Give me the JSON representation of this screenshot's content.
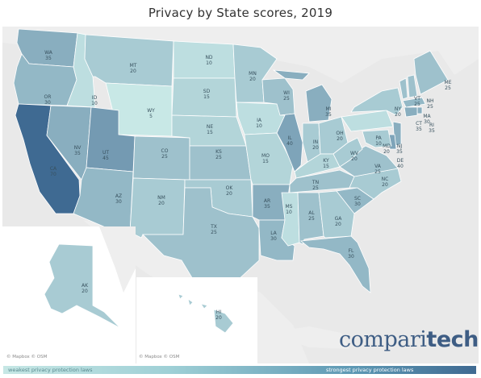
{
  "title": "Privacy by State scores, 2019",
  "legend": {
    "weak_label": "weakest privacy protection laws",
    "strong_label": "strongest privacy protection laws"
  },
  "credits": {
    "main": "© Mapbox  © OSM",
    "hawaii": "© Mapbox  © OSM"
  },
  "logo": {
    "part1": "compari",
    "part2": "tech"
  },
  "colors": {
    "background": "#e9e9e9",
    "low": "#c8e8e6",
    "high": "#3f6a92"
  },
  "states": [
    {
      "abbr": "WA",
      "score": "35"
    },
    {
      "abbr": "OR",
      "score": "30"
    },
    {
      "abbr": "CA",
      "score": "70"
    },
    {
      "abbr": "NV",
      "score": "35"
    },
    {
      "abbr": "ID",
      "score": "10"
    },
    {
      "abbr": "MT",
      "score": "20"
    },
    {
      "abbr": "WY",
      "score": "5"
    },
    {
      "abbr": "UT",
      "score": "45"
    },
    {
      "abbr": "AZ",
      "score": "30"
    },
    {
      "abbr": "CO",
      "score": "25"
    },
    {
      "abbr": "NM",
      "score": "20"
    },
    {
      "abbr": "ND",
      "score": "10"
    },
    {
      "abbr": "SD",
      "score": "15"
    },
    {
      "abbr": "NE",
      "score": "15"
    },
    {
      "abbr": "KS",
      "score": "25"
    },
    {
      "abbr": "OK",
      "score": "20"
    },
    {
      "abbr": "TX",
      "score": "25"
    },
    {
      "abbr": "MN",
      "score": "20"
    },
    {
      "abbr": "IA",
      "score": "10"
    },
    {
      "abbr": "MO",
      "score": "15"
    },
    {
      "abbr": "AR",
      "score": "35"
    },
    {
      "abbr": "LA",
      "score": "30"
    },
    {
      "abbr": "WI",
      "score": "25"
    },
    {
      "abbr": "IL",
      "score": "40"
    },
    {
      "abbr": "MI",
      "score": "35"
    },
    {
      "abbr": "IN",
      "score": "20"
    },
    {
      "abbr": "OH",
      "score": "20"
    },
    {
      "abbr": "KY",
      "score": "15"
    },
    {
      "abbr": "TN",
      "score": "25"
    },
    {
      "abbr": "MS",
      "score": "10"
    },
    {
      "abbr": "AL",
      "score": "25"
    },
    {
      "abbr": "GA",
      "score": "20"
    },
    {
      "abbr": "FL",
      "score": "30"
    },
    {
      "abbr": "SC",
      "score": "30"
    },
    {
      "abbr": "NC",
      "score": "20"
    },
    {
      "abbr": "VA",
      "score": "25"
    },
    {
      "abbr": "WV",
      "score": "20"
    },
    {
      "abbr": "PA",
      "score": "10"
    },
    {
      "abbr": "NY",
      "score": "20"
    },
    {
      "abbr": "VT",
      "score": "25"
    },
    {
      "abbr": "NH",
      "score": "25"
    },
    {
      "abbr": "ME",
      "score": "25"
    },
    {
      "abbr": "MA",
      "score": "30"
    },
    {
      "abbr": "RI",
      "score": "35"
    },
    {
      "abbr": "CT",
      "score": "35"
    },
    {
      "abbr": "NJ",
      "score": "35"
    },
    {
      "abbr": "DE",
      "score": "40"
    },
    {
      "abbr": "MD",
      "score": "20"
    },
    {
      "abbr": "AK",
      "score": "20"
    },
    {
      "abbr": "HI",
      "score": "20"
    }
  ]
}
